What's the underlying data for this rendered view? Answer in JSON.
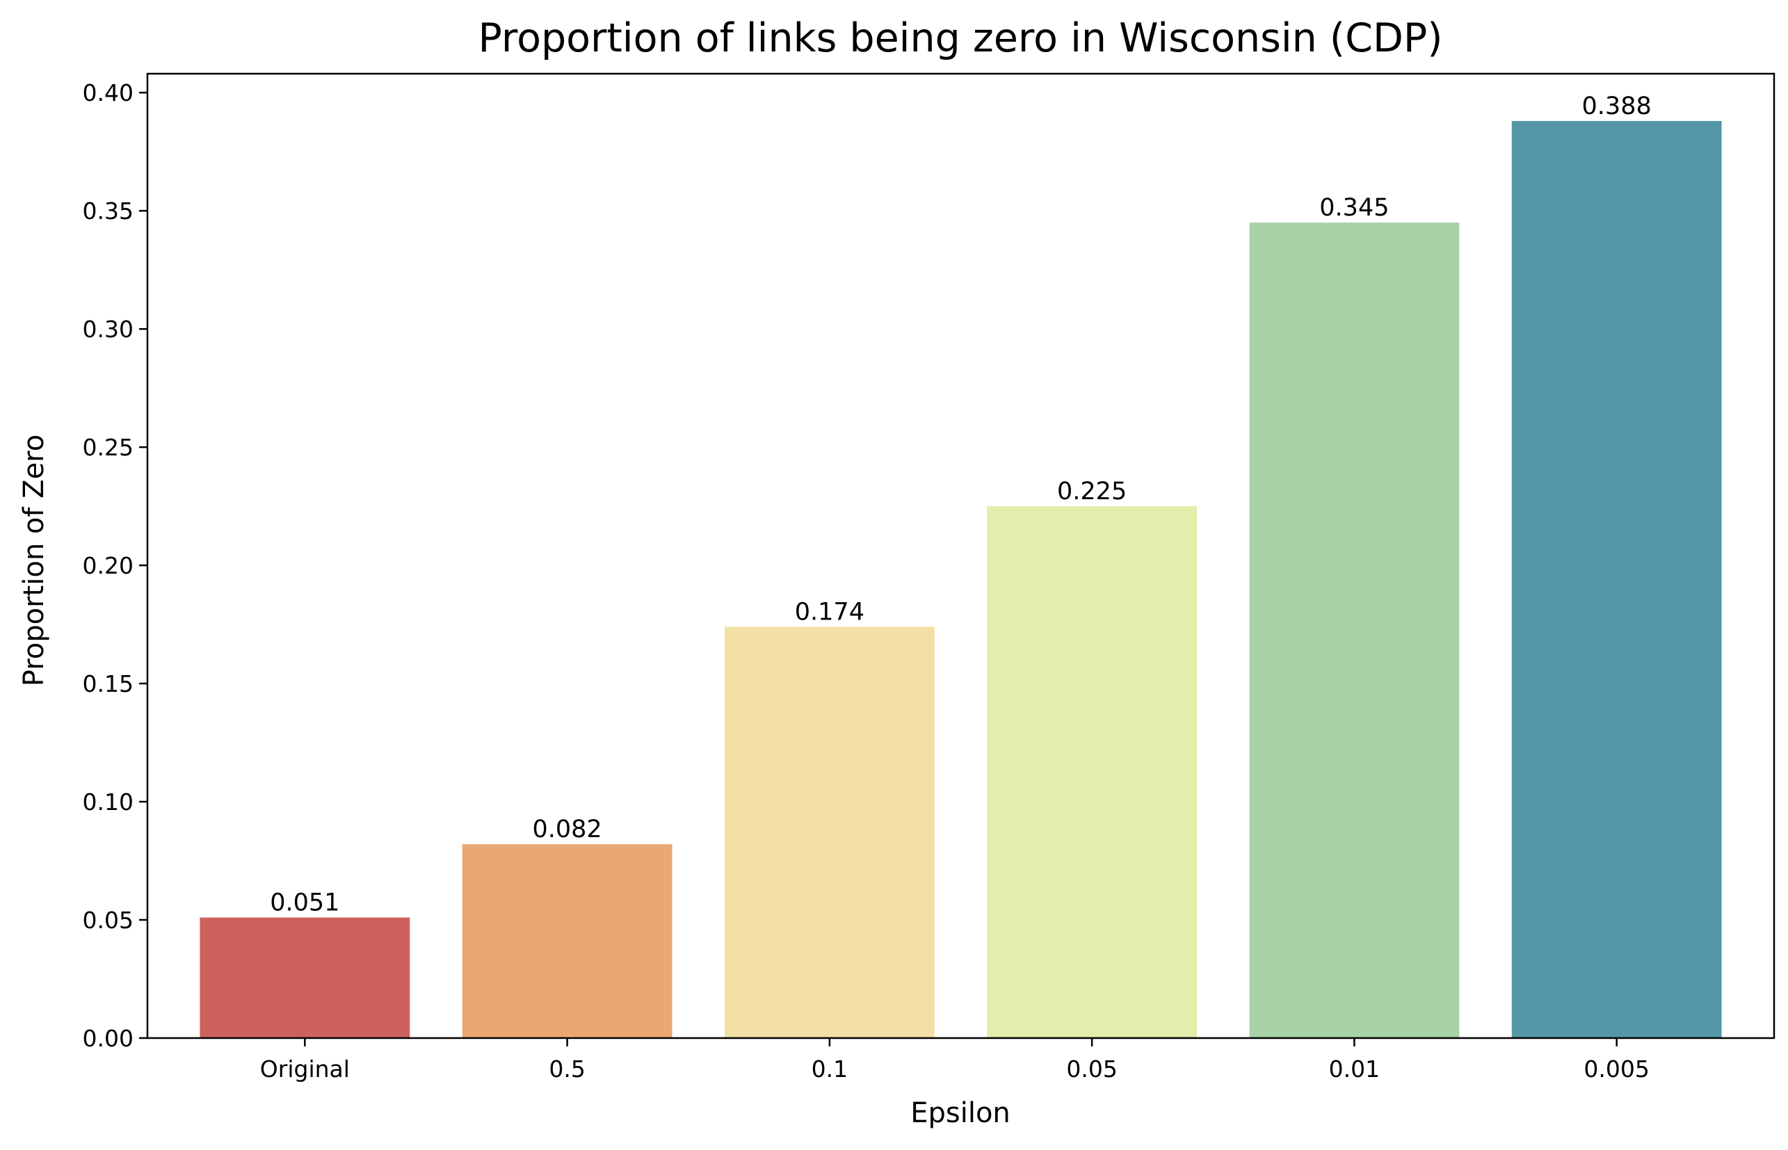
{
  "chart_data": {
    "type": "bar",
    "title": "Proportion of links being zero in Wisconsin (CDP)",
    "xlabel": "Epsilon",
    "ylabel": "Proportion of Zero",
    "categories": [
      "Original",
      "0.5",
      "0.1",
      "0.05",
      "0.01",
      "0.005"
    ],
    "values": [
      0.051,
      0.082,
      0.174,
      0.225,
      0.345,
      0.388
    ],
    "value_labels": [
      "0.051",
      "0.082",
      "0.174",
      "0.225",
      "0.345",
      "0.388"
    ],
    "colors": [
      "#cd625c",
      "#e8a773",
      "#f2e0a6",
      "#e4edab",
      "#a8d1a8",
      "#5597a6"
    ],
    "ylim": [
      0,
      0.408
    ],
    "yticks": [
      0.0,
      0.05,
      0.1,
      0.15,
      0.2,
      0.25,
      0.3,
      0.35,
      0.4
    ],
    "ytick_labels": [
      "0.00",
      "0.05",
      "0.10",
      "0.15",
      "0.20",
      "0.25",
      "0.30",
      "0.35",
      "0.40"
    ],
    "grid": false,
    "legend": "none"
  }
}
